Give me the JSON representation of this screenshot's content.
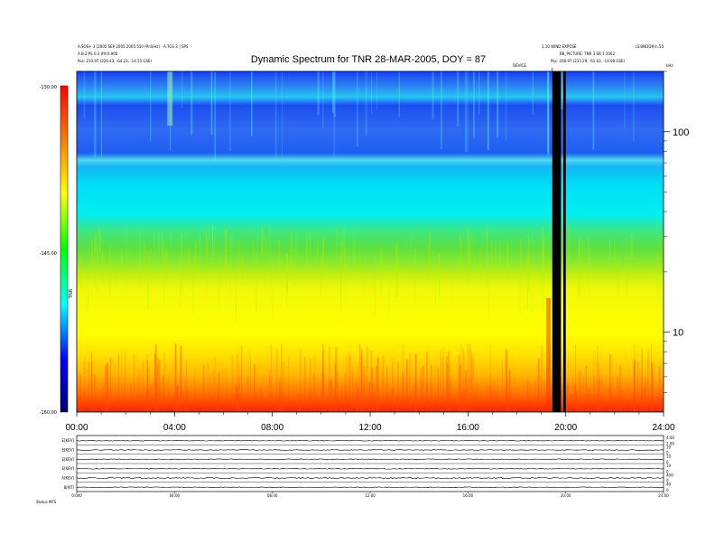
{
  "chart_data": [
    {
      "type": "heatmap",
      "title": "Dynamic Spectrum for TNR 28-MAR-2005, DOY = 87",
      "header": {
        "top_left_1": "A.SOS+ 3 [2005 SEP 2005 2005:550 (Pn/kHz) - A.TGS 3 ] SPS",
        "top_left_2": "A.B.2 PS 0.3 #9:0.900",
        "top_left_3": "Pos: 210.97 (226.43, -64.23, -14.55 GSE)",
        "top_right_1": "1.10 WIND EXPOSE",
        "top_right_2": "LS.BNOD#/n.50",
        "top_right_3": "BB_PICTURE: TNR 3 EB 1 2002",
        "top_right_4": "Pos: 208.97 (233.29, -61.63, -14.99 GSE)",
        "marker_label": "DEVICE",
        "khz_label": "kHz"
      },
      "x_ticks": [
        "00:00",
        "04:00",
        "08:00",
        "12:00",
        "16:00",
        "20:00",
        "24:00"
      ],
      "x_range_hours": [
        0,
        24
      ],
      "y_axis": {
        "scale": "log",
        "range_khz": [
          4,
          200
        ],
        "ticks": [
          "100",
          "10"
        ],
        "tick_values": [
          100,
          10
        ]
      },
      "colorbar": {
        "ticks": [
          "-130.00",
          "-145.00",
          "-160.00"
        ],
        "tick_values": [
          -130,
          -145,
          -160
        ],
        "label": "TNR"
      },
      "data_gaps_hours": [
        [
          19.45,
          19.8
        ],
        [
          19.9,
          20.0
        ]
      ]
    },
    {
      "type": "line",
      "panels": [
        "E[KEV]",
        "E[KEV]",
        "E[KEV]",
        "E[KEV]",
        "A[KEV]",
        "B[NT]"
      ],
      "right_ticks": [
        [
          "4.00",
          "2.00"
        ],
        [
          "10",
          "0"
        ],
        [
          "10",
          "0"
        ],
        [
          "10",
          "0"
        ],
        [
          "400",
          "0"
        ],
        [
          "40",
          "0"
        ]
      ],
      "x_ticks": [
        "0:000",
        "04:00",
        "08:00",
        "12:00",
        "16:00",
        "20:00",
        "24:00"
      ],
      "footer": "Status  MFS"
    }
  ]
}
